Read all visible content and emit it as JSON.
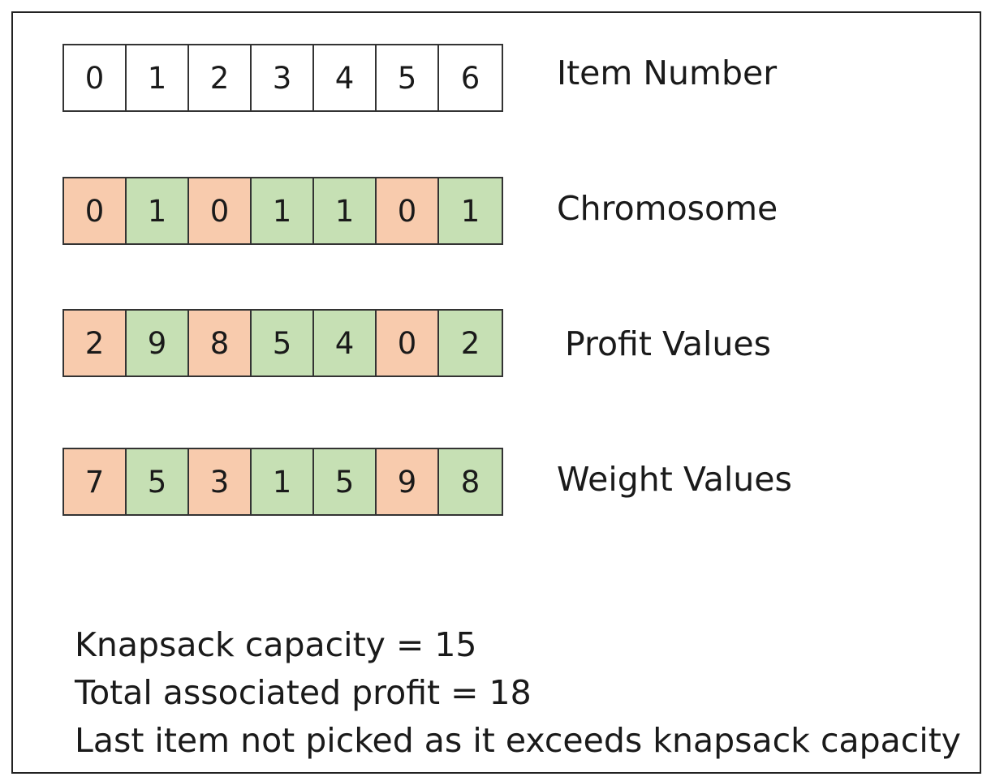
{
  "rows": [
    {
      "label": "Item Number",
      "values": [
        "0",
        "1",
        "2",
        "3",
        "4",
        "5",
        "6"
      ],
      "states": [
        "plain",
        "plain",
        "plain",
        "plain",
        "plain",
        "plain",
        "plain"
      ]
    },
    {
      "label": "Chromosome",
      "values": [
        "0",
        "1",
        "0",
        "1",
        "1",
        "0",
        "1"
      ],
      "states": [
        "off",
        "on",
        "off",
        "on",
        "on",
        "off",
        "on"
      ]
    },
    {
      "label": "Profit Values",
      "values": [
        "2",
        "9",
        "8",
        "5",
        "4",
        "0",
        "2"
      ],
      "states": [
        "off",
        "on",
        "off",
        "on",
        "on",
        "off",
        "on"
      ]
    },
    {
      "label": "Weight Values",
      "values": [
        "7",
        "5",
        "3",
        "1",
        "5",
        "9",
        "8"
      ],
      "states": [
        "off",
        "on",
        "off",
        "on",
        "on",
        "off",
        "on"
      ]
    }
  ],
  "colors": {
    "not_selected": "#f8cbad",
    "selected": "#c6e0b4",
    "plain": "#ffffff",
    "border": "#333333"
  },
  "notes": [
    "Knapsack capacity = 15",
    "Total associated profit = 18",
    "Last item not picked as it exceeds knapsack capacity"
  ]
}
